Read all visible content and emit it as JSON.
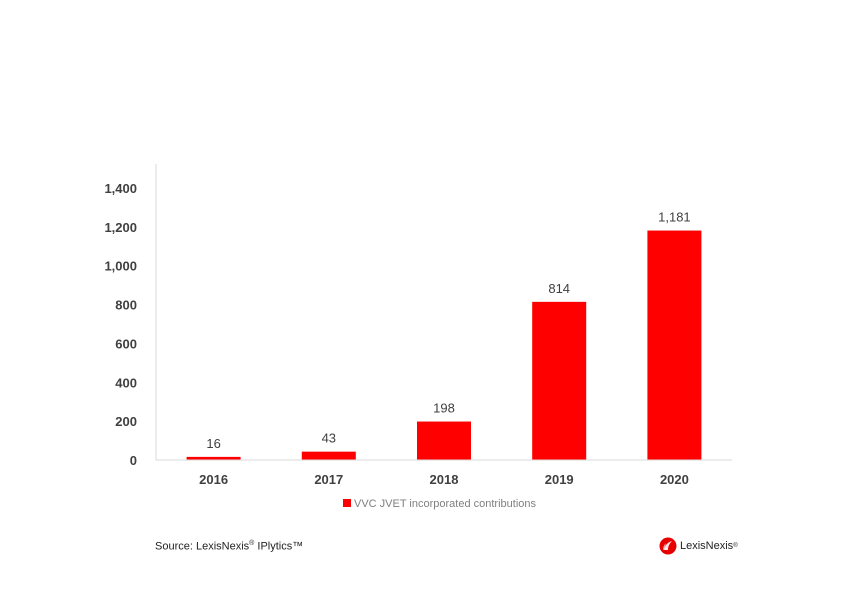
{
  "chart_data": {
    "type": "bar",
    "categories": [
      "2016",
      "2017",
      "2018",
      "2019",
      "2020"
    ],
    "values": [
      16,
      43,
      198,
      814,
      1181
    ],
    "data_labels": [
      "16",
      "43",
      "198",
      "814",
      "1,181"
    ],
    "y_ticks": [
      0,
      200,
      400,
      600,
      800,
      1000,
      1200,
      1400
    ],
    "y_tick_labels": [
      "0",
      "200",
      "400",
      "600",
      "800",
      "1,000",
      "1,200",
      "1,400"
    ],
    "ylim": [
      0,
      1400
    ],
    "legend": "VVC JVET incorporated contributions",
    "legend_position": "bottom",
    "title": "",
    "xlabel": "",
    "ylabel": "",
    "grid": false,
    "bar_color": "#ff0000"
  },
  "footer": {
    "source_label": "Source: LexisNexis",
    "source_reg": "®",
    "source_product": "IPlytics™",
    "logo_text": "LexisNexis",
    "logo_mark": "®",
    "logo_icon": "lexisnexis-logo-icon",
    "logo_color": "#e60000"
  }
}
